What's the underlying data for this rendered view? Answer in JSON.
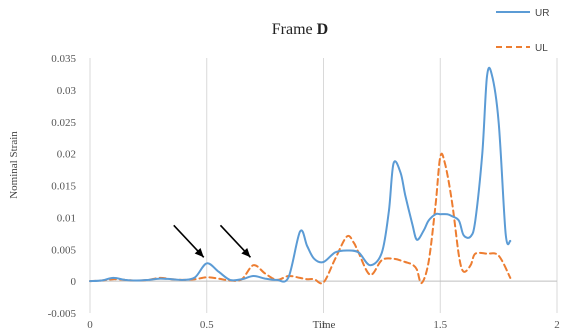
{
  "chart_data": {
    "type": "line",
    "title_prefix": "Frame ",
    "title_letter": "D",
    "xlabel": "Time",
    "ylabel": "Nominal Strain",
    "xlim": [
      0,
      2
    ],
    "ylim": [
      -0.005,
      0.035
    ],
    "xticks": [
      0,
      0.5,
      1,
      1.5,
      2
    ],
    "xtick_labels": [
      "0",
      "0.5",
      "1",
      "1.5",
      "2"
    ],
    "yticks": [
      -0.005,
      0,
      0.005,
      0.01,
      0.015,
      0.02,
      0.025,
      0.03,
      0.035
    ],
    "ytick_labels": [
      "-0.005",
      "0",
      "0.005",
      "0.01",
      "0.015",
      "0.02",
      "0.025",
      "0.03",
      "0.035"
    ],
    "grid": "vertical",
    "legend_position": "top-right",
    "annotations": [
      {
        "type": "arrow",
        "target_x": 0.5,
        "target_y": 0.0028
      },
      {
        "type": "arrow",
        "target_x": 0.7,
        "target_y": 0.0028
      }
    ],
    "series": [
      {
        "name": "UR",
        "color": "#5b9bd5",
        "style": "solid",
        "x": [
          0,
          0.05,
          0.1,
          0.15,
          0.2,
          0.25,
          0.3,
          0.35,
          0.4,
          0.45,
          0.5,
          0.55,
          0.6,
          0.65,
          0.7,
          0.75,
          0.8,
          0.85,
          0.9,
          0.93,
          0.96,
          1.0,
          1.05,
          1.1,
          1.15,
          1.2,
          1.25,
          1.28,
          1.3,
          1.33,
          1.35,
          1.38,
          1.4,
          1.43,
          1.45,
          1.48,
          1.5,
          1.53,
          1.55,
          1.58,
          1.6,
          1.63,
          1.65,
          1.68,
          1.7,
          1.72,
          1.75,
          1.78,
          1.8
        ],
        "y": [
          0,
          0.0001,
          0.0005,
          0.0002,
          0.0001,
          0.0002,
          0.0004,
          0.0003,
          0.0002,
          0.0006,
          0.0028,
          0.0015,
          0.0002,
          0.0003,
          0.0008,
          0.0004,
          0.0002,
          0.0006,
          0.0078,
          0.0055,
          0.0035,
          0.003,
          0.0045,
          0.0048,
          0.0045,
          0.0025,
          0.0045,
          0.011,
          0.0185,
          0.017,
          0.0135,
          0.009,
          0.0065,
          0.008,
          0.0095,
          0.0105,
          0.0105,
          0.0105,
          0.0102,
          0.0095,
          0.0072,
          0.007,
          0.0095,
          0.02,
          0.032,
          0.0325,
          0.025,
          0.0075,
          0.0063
        ]
      },
      {
        "name": "UL",
        "color": "#ed7d31",
        "style": "dashed",
        "x": [
          0,
          0.05,
          0.1,
          0.15,
          0.2,
          0.25,
          0.3,
          0.35,
          0.4,
          0.45,
          0.5,
          0.55,
          0.6,
          0.65,
          0.7,
          0.75,
          0.8,
          0.85,
          0.9,
          0.93,
          0.96,
          1.0,
          1.05,
          1.1,
          1.13,
          1.15,
          1.2,
          1.25,
          1.3,
          1.35,
          1.38,
          1.4,
          1.42,
          1.45,
          1.48,
          1.5,
          1.52,
          1.55,
          1.58,
          1.6,
          1.63,
          1.65,
          1.7,
          1.75,
          1.8
        ],
        "y": [
          0,
          0.0001,
          0.0003,
          0.0002,
          0.0001,
          0.0002,
          0.0005,
          0.0003,
          0.0002,
          0.0003,
          0.0006,
          0.0004,
          0.0001,
          0.0003,
          0.0025,
          0.0012,
          0.0002,
          0.0008,
          0.0005,
          0.0003,
          0.0003,
          -0.0002,
          0.0035,
          0.007,
          0.006,
          0.0045,
          0.001,
          0.0033,
          0.0035,
          0.003,
          0.0026,
          0.0018,
          -0.0003,
          0.003,
          0.012,
          0.0195,
          0.0185,
          0.0125,
          0.004,
          0.0015,
          0.0025,
          0.0043,
          0.0043,
          0.004,
          0.0005
        ]
      }
    ]
  }
}
